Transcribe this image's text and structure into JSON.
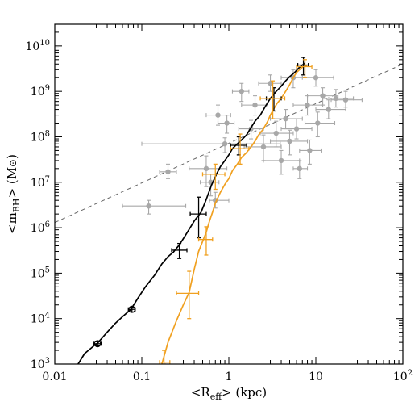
{
  "chart_data": {
    "type": "scatter",
    "xlabel": {
      "pre": "<R",
      "sub": "eff",
      "post": "> (kpc)"
    },
    "ylabel": {
      "pre": "<m",
      "sub": "BH",
      "post": "> (M",
      "sym": "⊙",
      "end": ")"
    },
    "x_scale": "log",
    "y_scale": "log",
    "xlim": [
      0.01,
      100
    ],
    "ylim": [
      1000,
      30000000000
    ],
    "x_ticks": [
      {
        "value": 0.01,
        "label": "0.01"
      },
      {
        "value": 0.1,
        "label": "0.1"
      },
      {
        "value": 1,
        "label": "1"
      },
      {
        "value": 10,
        "label": "10"
      },
      {
        "value": 100,
        "label": "10",
        "sup": "2"
      }
    ],
    "y_ticks": [
      {
        "value": 1000,
        "label": "10",
        "sup": "3"
      },
      {
        "value": 10000,
        "label": "10",
        "sup": "4"
      },
      {
        "value": 100000,
        "label": "10",
        "sup": "5"
      },
      {
        "value": 1000000,
        "label": "10",
        "sup": "6"
      },
      {
        "value": 10000000,
        "label": "10",
        "sup": "7"
      },
      {
        "value": 100000000,
        "label": "10",
        "sup": "8"
      },
      {
        "value": 1000000000,
        "label": "10",
        "sup": "9"
      },
      {
        "value": 10000000000,
        "label": "10",
        "sup": "10"
      }
    ],
    "colors": {
      "black_curve": "#000000",
      "orange_curve": "#f0a020",
      "observed": "#a8a8a8",
      "dashed": "#666666"
    },
    "dashed_line": {
      "x": [
        0.01,
        100
      ],
      "y": [
        1300000,
        4000000000
      ]
    },
    "series": [
      {
        "key": "black_curve",
        "type": "line",
        "x": [
          0.0185,
          0.022,
          0.028,
          0.031,
          0.04,
          0.05,
          0.06,
          0.075,
          0.09,
          0.11,
          0.14,
          0.17,
          0.2,
          0.23,
          0.27,
          0.32,
          0.4,
          0.48,
          0.55,
          0.63,
          0.72,
          0.8,
          0.9,
          1.0,
          1.1,
          1.25,
          1.4,
          1.6,
          1.8,
          2.0,
          2.3,
          2.6,
          3.0,
          3.5,
          4.0,
          4.5,
          5.0,
          5.7,
          6.3,
          7.0,
          7.5
        ],
        "y": [
          1000,
          1700,
          2500,
          2900,
          5000,
          8000,
          11000,
          16000,
          28000,
          50000,
          90000,
          160000,
          230000,
          290000,
          420000,
          700000,
          1400000,
          2200000,
          4200000,
          8500000,
          15000000,
          22000000,
          30000000,
          40000000,
          55000000,
          70000000,
          85000000,
          110000000,
          160000000,
          220000000,
          300000000,
          450000000,
          700000000,
          1000000000,
          1300000000,
          1700000000,
          2100000000,
          2600000000,
          3200000000,
          3800000000,
          4200000000
        ]
      },
      {
        "key": "orange_curve",
        "type": "line",
        "x": [
          0.17,
          0.2,
          0.25,
          0.3,
          0.35,
          0.4,
          0.45,
          0.5,
          0.55,
          0.6,
          0.65,
          0.7,
          0.8,
          0.9,
          1.0,
          1.1,
          1.25,
          1.4,
          1.6,
          1.8,
          2.0,
          2.2,
          2.5,
          2.8,
          3.0,
          3.3,
          3.6,
          4.0,
          4.5,
          5.0,
          5.5,
          6.0,
          6.5,
          7.0,
          7.5,
          8.0
        ],
        "y": [
          1000,
          3000,
          9000,
          20000,
          38000,
          120000,
          300000,
          500000,
          800000,
          1400000,
          2200000,
          3500000,
          6000000,
          9000000,
          12000000,
          18000000,
          25000000,
          35000000,
          45000000,
          60000000,
          80000000,
          110000000,
          150000000,
          220000000,
          300000000,
          420000000,
          550000000,
          700000000,
          1000000000,
          1400000000,
          2000000000,
          2600000000,
          3000000000,
          3400000000,
          3600000000,
          3800000000
        ]
      },
      {
        "key": "black_curve",
        "type": "errorbars",
        "points": [
          {
            "x": 0.031,
            "y": 2800,
            "xerr": [
              0.003,
              0.003
            ],
            "yerr": [
              300,
              300
            ],
            "open_marker": true
          },
          {
            "x": 0.077,
            "y": 16000,
            "xerr": [
              0.007,
              0.007
            ],
            "yerr": [
              2000,
              2000
            ],
            "open_marker": true
          },
          {
            "x": 0.27,
            "y": 320000,
            "xerr": [
              0.05,
              0.06
            ],
            "yerr": [
              110000,
              130000
            ]
          },
          {
            "x": 0.45,
            "y": 2000000,
            "xerr": [
              0.09,
              0.1
            ],
            "yerr": [
              1400000,
              2700000
            ]
          },
          {
            "x": 1.3,
            "y": 65000000,
            "xerr": [
              0.25,
              0.3
            ],
            "yerr": [
              25000000,
              35000000
            ]
          },
          {
            "x": 3.3,
            "y": 700000000,
            "xerr": [
              0.6,
              0.7
            ],
            "yerr": [
              330000000,
              500000000
            ]
          },
          {
            "x": 7.2,
            "y": 3800000000,
            "xerr": [
              1.0,
              1.0
            ],
            "yerr": [
              1500000000,
              1800000000
            ]
          }
        ]
      },
      {
        "key": "orange_curve",
        "type": "errorbars",
        "points": [
          {
            "x": 0.18,
            "y": 1100,
            "xerr": [
              0.02,
              0.03
            ],
            "yerr": [
              100,
              900
            ]
          },
          {
            "x": 0.35,
            "y": 36000,
            "xerr": [
              0.1,
              0.1
            ],
            "yerr": [
              26000,
              74000
            ]
          },
          {
            "x": 0.55,
            "y": 550000,
            "xerr": [
              0.1,
              0.1
            ],
            "yerr": [
              300000,
              500000
            ]
          },
          {
            "x": 0.7,
            "y": 15000000,
            "xerr": [
              0.2,
              0.2
            ],
            "yerr": [
              8000000,
              10000000
            ]
          },
          {
            "x": 1.35,
            "y": 55000000,
            "xerr": [
              0.3,
              0.35
            ],
            "yerr": [
              30000000,
              60000000
            ]
          },
          {
            "x": 3.2,
            "y": 700000000,
            "xerr": [
              0.9,
              1.2
            ],
            "yerr": [
              450000000,
              1000000000
            ]
          },
          {
            "x": 7.5,
            "y": 3500000000,
            "xerr": [
              1.5,
              1.5
            ],
            "yerr": [
              1500000000,
              1500000000
            ]
          }
        ]
      },
      {
        "key": "observed",
        "type": "errorbars",
        "points": [
          {
            "x": 0.12,
            "y": 3000000,
            "xerr": [
              0.06,
              0.2
            ],
            "yerr": [
              1000000,
              1000000
            ]
          },
          {
            "x": 0.2,
            "y": 17000000,
            "xerr": [
              0.04,
              0.05
            ],
            "yerr": [
              5000000,
              8000000
            ]
          },
          {
            "x": 0.7,
            "y": 4000000,
            "xerr": [
              0.1,
              0.3
            ],
            "yerr": [
              1300000,
              2000000
            ]
          },
          {
            "x": 0.62,
            "y": 10000000,
            "xerr": [
              0.15,
              0.15
            ],
            "yerr": [
              5000000,
              5000000
            ]
          },
          {
            "x": 0.55,
            "y": 20000000,
            "xerr": [
              0.2,
              0.4
            ],
            "yerr": [
              12000000,
              18000000
            ]
          },
          {
            "x": 0.9,
            "y": 70000000,
            "xerr": [
              0.8,
              3.0
            ],
            "yerr": [
              25000000,
              25000000
            ]
          },
          {
            "x": 0.75,
            "y": 300000000,
            "xerr": [
              0.2,
              0.3
            ],
            "yerr": [
              120000000,
              200000000
            ]
          },
          {
            "x": 0.95,
            "y": 200000000,
            "xerr": [
              0.2,
              0.2
            ],
            "yerr": [
              80000000,
              100000000
            ]
          },
          {
            "x": 1.4,
            "y": 1000000000,
            "xerr": [
              0.3,
              0.3
            ],
            "yerr": [
              400000000,
              500000000
            ]
          },
          {
            "x": 1.8,
            "y": 150000000,
            "xerr": [
              0.5,
              0.7
            ],
            "yerr": [
              60000000,
              80000000
            ]
          },
          {
            "x": 2.0,
            "y": 500000000,
            "xerr": [
              0.6,
              0.8
            ],
            "yerr": [
              200000000,
              300000000
            ]
          },
          {
            "x": 2.5,
            "y": 60000000,
            "xerr": [
              1.0,
              1.5
            ],
            "yerr": [
              30000000,
              50000000
            ]
          },
          {
            "x": 3.0,
            "y": 1500000000,
            "xerr": [
              0.8,
              1.0
            ],
            "yerr": [
              500000000,
              800000000
            ]
          },
          {
            "x": 3.5,
            "y": 120000000,
            "xerr": [
              1.2,
              2.0
            ],
            "yerr": [
              60000000,
              100000000
            ]
          },
          {
            "x": 4.0,
            "y": 30000000,
            "xerr": [
              1.5,
              2.5
            ],
            "yerr": [
              15000000,
              20000000
            ]
          },
          {
            "x": 4.5,
            "y": 250000000,
            "xerr": [
              1.5,
              2.5
            ],
            "yerr": [
              100000000,
              150000000
            ]
          },
          {
            "x": 5.0,
            "y": 80000000,
            "xerr": [
              2.0,
              3.0
            ],
            "yerr": [
              40000000,
              60000000
            ]
          },
          {
            "x": 5.5,
            "y": 2000000000,
            "xerr": [
              1.5,
              2.0
            ],
            "yerr": [
              800000000,
              1000000000
            ]
          },
          {
            "x": 6.0,
            "y": 150000000,
            "xerr": [
              2.0,
              3.0
            ],
            "yerr": [
              60000000,
              100000000
            ]
          },
          {
            "x": 6.5,
            "y": 20000000,
            "xerr": [
              1.0,
              1.5
            ],
            "yerr": [
              8000000,
              10000000
            ]
          },
          {
            "x": 8.0,
            "y": 500000000,
            "xerr": [
              2.5,
              4.0
            ],
            "yerr": [
              200000000,
              300000000
            ]
          },
          {
            "x": 8.5,
            "y": 50000000,
            "xerr": [
              2.0,
              3.0
            ],
            "yerr": [
              25000000,
              35000000
            ]
          },
          {
            "x": 10.0,
            "y": 2000000000,
            "xerr": [
              3.0,
              6.0
            ],
            "yerr": [
              700000000,
              1000000000
            ]
          },
          {
            "x": 10.5,
            "y": 200000000,
            "xerr": [
              3.0,
              6.0
            ],
            "yerr": [
              100000000,
              150000000
            ]
          },
          {
            "x": 12.0,
            "y": 800000000,
            "xerr": [
              4.0,
              6.0
            ],
            "yerr": [
              300000000,
              400000000
            ]
          },
          {
            "x": 14.0,
            "y": 400000000,
            "xerr": [
              4.0,
              8.0
            ],
            "yerr": [
              150000000,
              250000000
            ]
          },
          {
            "x": 17.0,
            "y": 700000000,
            "xerr": [
              5.0,
              10.0
            ],
            "yerr": [
              250000000,
              400000000
            ]
          },
          {
            "x": 22.0,
            "y": 650000000,
            "xerr": [
              7.0,
              12.0
            ],
            "yerr": [
              200000000,
              350000000
            ]
          }
        ]
      }
    ]
  }
}
